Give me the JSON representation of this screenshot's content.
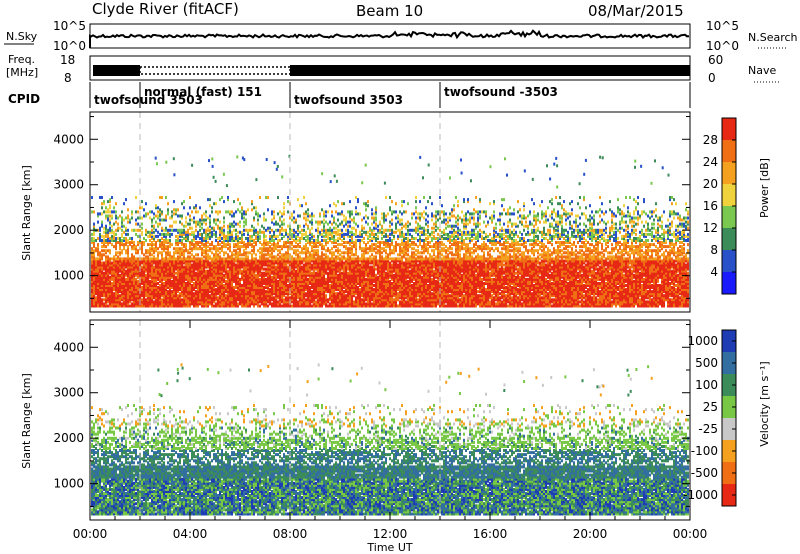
{
  "header": {
    "station": "Clyde River (fitACF)",
    "beam": "Beam 10",
    "date": "08/Mar/2015"
  },
  "panels": {
    "nsky": {
      "left_label": "N.Sky",
      "right_label": "N.Search",
      "left_ticks": [
        "10^5",
        "10^0"
      ],
      "right_ticks": [
        "10^5",
        "10^0"
      ]
    },
    "freq": {
      "left_label_1": "Freq.",
      "left_label_2": "[MHz]",
      "right_label": "Nave",
      "left_ticks": [
        "18",
        "8"
      ],
      "right_ticks": [
        "60",
        "0"
      ]
    },
    "cpid": {
      "label": "CPID",
      "segments": [
        {
          "name": "twofsound 3503",
          "start_h": 0
        },
        {
          "name": "normal (fast) 151",
          "start_h": 2
        },
        {
          "name": "twofsound 3503",
          "start_h": 8
        },
        {
          "name": "twofsound -3503",
          "start_h": 14
        }
      ]
    }
  },
  "chart_data": [
    {
      "type": "heatmap",
      "name": "Power",
      "ylabel": "Slant Range [km]",
      "xlim_hours": [
        0,
        24
      ],
      "ylim_km": [
        200,
        4600
      ],
      "yticks": [
        1000,
        2000,
        3000,
        4000
      ],
      "colorbar": {
        "label": "Power [dB]",
        "ticks": [
          "4",
          "8",
          "12",
          "16",
          "20",
          "24",
          "28"
        ],
        "colors": [
          "#1a1aff",
          "#2850c8",
          "#3c8c5a",
          "#7ac850",
          "#f0d23c",
          "#f5a01e",
          "#f06e14",
          "#e62814"
        ]
      }
    },
    {
      "type": "heatmap",
      "name": "Velocity",
      "ylabel": "Slant Range [km]",
      "xlabel": "Time UT",
      "xlim_hours": [
        0,
        24
      ],
      "ylim_km": [
        200,
        4600
      ],
      "yticks": [
        1000,
        2000,
        3000,
        4000
      ],
      "xticks": [
        "00:00",
        "04:00",
        "08:00",
        "12:00",
        "16:00",
        "20:00",
        "00:00"
      ],
      "colorbar": {
        "label": "Velocity [m s⁻¹]",
        "ticks": [
          "1000",
          "500",
          "100",
          "25",
          "-25",
          "-100",
          "-500",
          "-1000"
        ],
        "colors": [
          "#1e3cb4",
          "#326ea0",
          "#3c8c5a",
          "#78c846",
          "#c8c8c8",
          "#f5a01e",
          "#f06e14",
          "#e62814"
        ]
      }
    }
  ]
}
